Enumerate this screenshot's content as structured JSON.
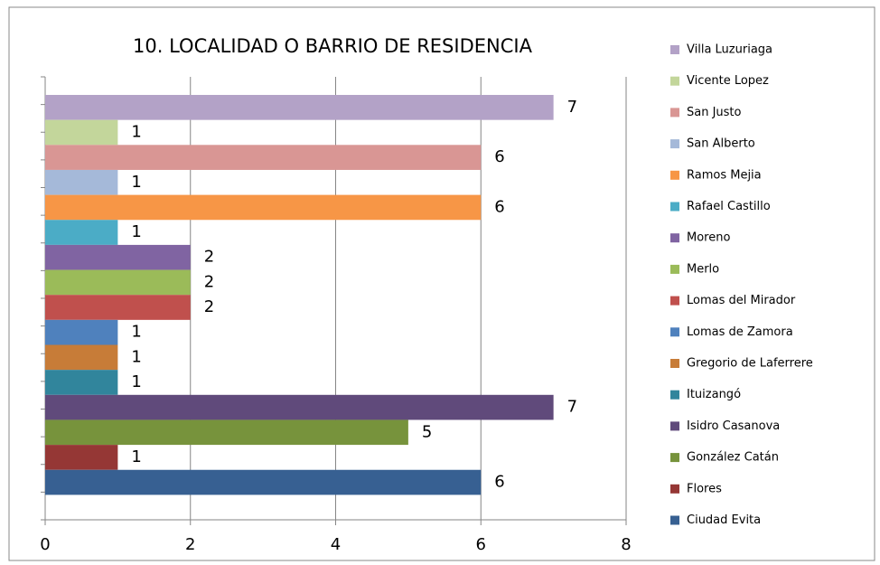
{
  "chart_data": {
    "type": "hbar",
    "title": "10. LOCALIDAD  O BARRIO DE RESIDENCIA",
    "categories": [
      "Villa Luzuriaga",
      "Vicente Lopez",
      "San Justo",
      "San Alberto",
      "Ramos Mejia",
      "Rafael Castillo",
      "Moreno",
      "Merlo",
      "Lomas del Mirador",
      "Lomas de Zamora",
      "Gregorio de Laferrere",
      "Ituizangó",
      "Isidro Casanova",
      "González Catán",
      "Flores",
      "Ciudad Evita"
    ],
    "values": [
      7,
      1,
      6,
      1,
      6,
      1,
      2,
      2,
      2,
      1,
      1,
      1,
      7,
      5,
      1,
      6
    ],
    "colors": [
      "#b3a2c7",
      "#c3d69b",
      "#d99694",
      "#a5b9d9",
      "#f79646",
      "#4bacc6",
      "#8064a2",
      "#9bbb59",
      "#c0504d",
      "#4f81bd",
      "#c77c38",
      "#31859c",
      "#604a7b",
      "#77933c",
      "#953735",
      "#376092"
    ],
    "xlim": [
      0,
      8
    ],
    "xticks": [
      0,
      2,
      4,
      6,
      8
    ],
    "grid": true,
    "legend": "right"
  }
}
